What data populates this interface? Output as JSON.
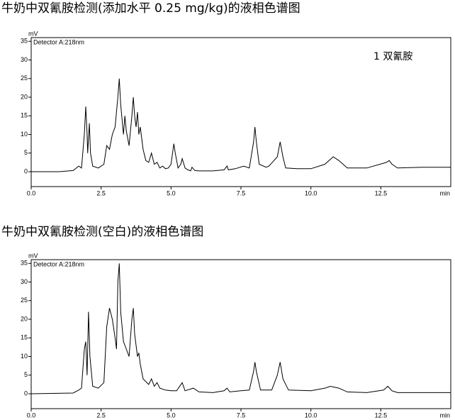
{
  "chart_data": [
    {
      "type": "line",
      "title": "牛奶中双氰胺检测(添加水平 0.25 mg/kg)的液相色谱图",
      "x_label": "min",
      "y_label": "mV",
      "detector": "Detector A:218nm",
      "annotation": "1  双氰胺",
      "color": "#000000",
      "xlim": [
        0,
        15
      ],
      "ylim": [
        -4,
        36
      ],
      "xticks": [
        {
          "value": 0,
          "label": "0.0"
        },
        {
          "value": 2.5,
          "label": "2.5"
        },
        {
          "value": 5,
          "label": "5.0"
        },
        {
          "value": 7.5,
          "label": "7.5"
        },
        {
          "value": 10,
          "label": "10.0"
        },
        {
          "value": 12.5,
          "label": "12.5"
        }
      ],
      "yticks": [
        0,
        5,
        10,
        15,
        20,
        25,
        30,
        35
      ],
      "x": [
        0,
        1.0,
        1.5,
        1.7,
        1.8,
        1.9,
        1.95,
        2.0,
        2.02,
        2.08,
        2.12,
        2.2,
        2.4,
        2.6,
        2.7,
        2.8,
        2.9,
        3.0,
        3.1,
        3.15,
        3.2,
        3.3,
        3.35,
        3.4,
        3.5,
        3.6,
        3.65,
        3.7,
        3.75,
        3.8,
        3.85,
        3.9,
        4.0,
        4.1,
        4.2,
        4.3,
        4.4,
        4.5,
        4.6,
        4.7,
        4.8,
        4.9,
        5.0,
        5.1,
        5.15,
        5.25,
        5.35,
        5.4,
        5.5,
        5.6,
        5.7,
        5.75,
        5.85,
        6.0,
        6.5,
        6.9,
        7.0,
        7.05,
        7.3,
        7.6,
        7.8,
        7.95,
        8.0,
        8.05,
        8.15,
        8.4,
        8.5,
        8.8,
        8.9,
        9.0,
        9.1,
        9.5,
        10.0,
        10.5,
        10.8,
        11.0,
        11.3,
        12.0,
        12.7,
        12.8,
        12.9,
        13.1,
        14,
        15
      ],
      "values": [
        0,
        0,
        0.3,
        1.5,
        1,
        10,
        17.5,
        10,
        5,
        13,
        5,
        1.5,
        1,
        2,
        7,
        6,
        10,
        12,
        20,
        25,
        18,
        10,
        15,
        11,
        7,
        15,
        20,
        15,
        12,
        16,
        10,
        12,
        6,
        3,
        2.5,
        5,
        2,
        2.5,
        1,
        1.5,
        0.8,
        1,
        2,
        7.5,
        5,
        1,
        2,
        3.5,
        1,
        0.5,
        0.2,
        1.2,
        0.3,
        0.2,
        0.2,
        0.5,
        1.5,
        0.5,
        0.8,
        1.5,
        1,
        8,
        12,
        8,
        2,
        1.2,
        1.5,
        4,
        8,
        4,
        1,
        0.8,
        0.8,
        2,
        4,
        3,
        1,
        1,
        2.5,
        3,
        2,
        1,
        1.2,
        1.2
      ]
    },
    {
      "type": "line",
      "title": "牛奶中双氰胺检测(空白)的液相色谱图",
      "x_label": "min",
      "y_label": "mV",
      "detector": "Detector A:218nm",
      "color": "#000000",
      "xlim": [
        0,
        15
      ],
      "ylim": [
        -4,
        36
      ],
      "xticks": [
        {
          "value": 0,
          "label": "0.0"
        },
        {
          "value": 2.5,
          "label": "2.5"
        },
        {
          "value": 5,
          "label": "5.0"
        },
        {
          "value": 7.5,
          "label": "7.5"
        },
        {
          "value": 10,
          "label": "10.0"
        },
        {
          "value": 12.5,
          "label": "12.5"
        }
      ],
      "yticks": [
        0,
        5,
        10,
        15,
        20,
        25,
        30,
        35
      ],
      "x": [
        0,
        1.5,
        1.7,
        1.8,
        1.9,
        1.95,
        2.0,
        2.05,
        2.1,
        2.2,
        2.4,
        2.6,
        2.7,
        2.8,
        2.9,
        3.0,
        3.05,
        3.1,
        3.15,
        3.2,
        3.3,
        3.4,
        3.5,
        3.6,
        3.65,
        3.7,
        3.8,
        3.85,
        3.9,
        4.0,
        4.2,
        4.3,
        4.4,
        4.5,
        4.6,
        4.8,
        5.0,
        5.2,
        5.4,
        5.5,
        5.8,
        6.0,
        6.5,
        6.9,
        7.0,
        7.1,
        7.5,
        7.8,
        7.95,
        8.0,
        8.05,
        8.2,
        8.6,
        8.8,
        8.9,
        9.0,
        9.2,
        10.0,
        10.5,
        10.7,
        11.0,
        11.3,
        12.0,
        12.6,
        12.75,
        12.9,
        13.1,
        15
      ],
      "values": [
        0,
        0.2,
        1,
        1.5,
        12,
        14,
        5,
        22,
        10,
        2,
        1.5,
        3,
        18,
        23,
        20,
        15,
        12,
        30,
        35,
        22,
        14,
        12,
        10,
        20,
        23,
        16,
        10,
        11,
        8,
        4,
        2.5,
        4,
        2,
        3,
        1.5,
        1,
        0.8,
        0.8,
        3,
        0.8,
        1.5,
        0.5,
        0.3,
        0.8,
        1.5,
        0.5,
        0.8,
        1,
        6,
        8.5,
        6,
        1,
        1,
        5,
        8.5,
        4,
        1,
        0.8,
        1.5,
        2,
        1.5,
        0.5,
        0.3,
        1,
        2,
        0.8,
        0.3,
        0.3
      ]
    }
  ]
}
